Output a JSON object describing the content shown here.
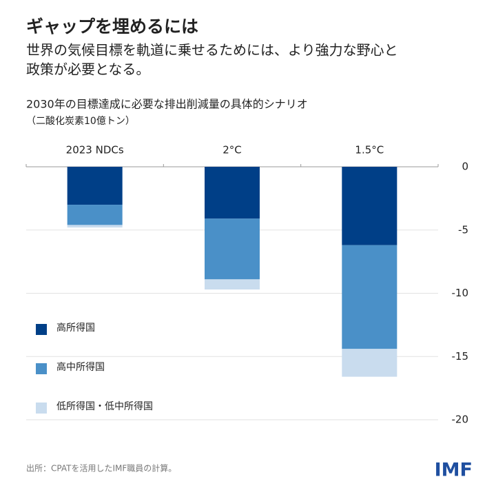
{
  "chart_data": {
    "type": "stacked-bar",
    "title": "ギャップを埋めるには",
    "subtitle": [
      "世界の気候目標を軌道に乗せるためには、より強力な野心と",
      "政策が必要となる。"
    ],
    "chart_title": "2030年の目標達成に必要な排出削減量の具体的シナリオ",
    "unit": "（二酸化炭素10億トン）",
    "categories": [
      "2023 NDCs",
      "2°C",
      "1.5°C"
    ],
    "series": [
      {
        "name": "高所得国",
        "color": "#003f87",
        "values": [
          -3.0,
          -4.1,
          -6.2
        ]
      },
      {
        "name": "高中所得国",
        "color": "#4a90c8",
        "values": [
          -1.6,
          -4.8,
          -8.2
        ]
      },
      {
        "name": "低所得国・低中所得国",
        "color": "#c9dcee",
        "values": [
          -0.2,
          -0.8,
          -2.2
        ]
      }
    ],
    "ylim": [
      -20,
      0
    ],
    "yticks": [
      0,
      -5,
      -10,
      -15,
      -20
    ],
    "grid": true,
    "source": "出所：CPATを活用したIMF職員の計算。",
    "logo": "IMF"
  }
}
